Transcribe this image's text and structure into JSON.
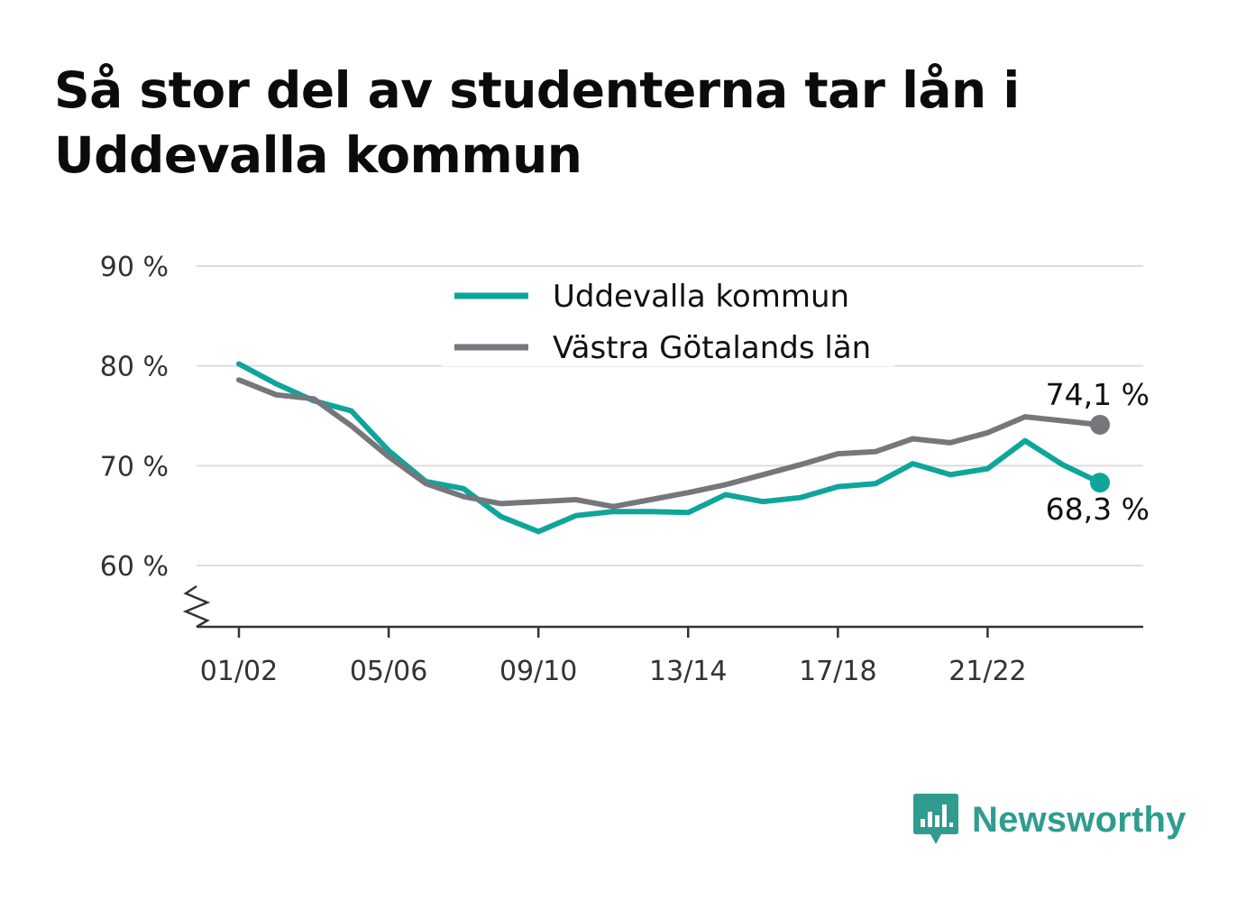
{
  "title": "Så stor del av studenterna tar lån i Uddevalla kommun",
  "brand": {
    "name": "Newsworthy",
    "icon": "newsworthy-logo-icon",
    "color": "#2f9c8f"
  },
  "colors": {
    "uddevalla": "#0fa59b",
    "vastra": "#76767c",
    "grid": "#dddddd",
    "axis": "#333333"
  },
  "chart_data": {
    "type": "line",
    "categories": [
      "01/02",
      "02/03",
      "03/04",
      "04/05",
      "05/06",
      "06/07",
      "07/08",
      "08/09",
      "09/10",
      "10/11",
      "11/12",
      "12/13",
      "13/14",
      "14/15",
      "15/16",
      "16/17",
      "17/18",
      "18/19",
      "19/20",
      "20/21",
      "21/22",
      "22/23",
      "23/24",
      "24/25"
    ],
    "x_tick_labels": [
      "01/02",
      "05/06",
      "09/10",
      "13/14",
      "17/18",
      "21/22"
    ],
    "y_tick_labels": [
      "60 %",
      "70 %",
      "80 %",
      "90 %"
    ],
    "y_ticks": [
      60,
      70,
      80,
      90
    ],
    "ylim": [
      53.8,
      90
    ],
    "y_axis_break": true,
    "legend_position": "top-center",
    "series": [
      {
        "name": "Uddevalla kommun",
        "color": "#0fa59b",
        "values": [
          80.2,
          78.2,
          76.5,
          75.5,
          71.5,
          68.4,
          67.7,
          64.9,
          63.4,
          65.0,
          65.4,
          65.4,
          65.3,
          67.1,
          66.4,
          66.8,
          67.9,
          68.2,
          70.2,
          69.1,
          69.7,
          72.5,
          70.1,
          68.3
        ],
        "end_label": "68,3 %"
      },
      {
        "name": "Västra Götalands län",
        "color": "#76767c",
        "values": [
          78.6,
          77.1,
          76.7,
          74.0,
          70.9,
          68.2,
          66.9,
          66.2,
          66.4,
          66.6,
          65.9,
          66.6,
          67.3,
          68.1,
          69.1,
          70.1,
          71.2,
          71.4,
          72.7,
          72.3,
          73.3,
          74.9,
          74.5,
          74.1
        ],
        "end_label": "74,1 %"
      }
    ]
  }
}
